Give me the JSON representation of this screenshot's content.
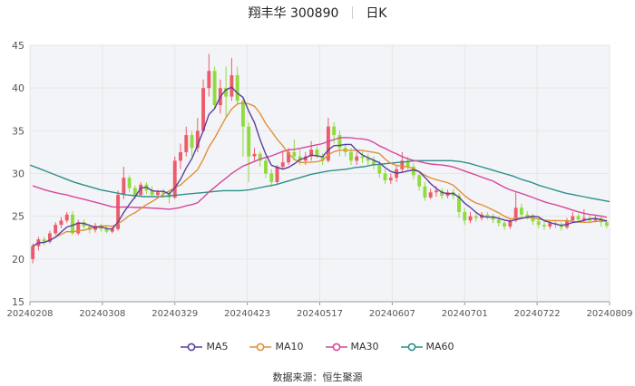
{
  "header": {
    "name": "翔丰华",
    "code": "300890",
    "period": "日K"
  },
  "source_label": "数据来源：",
  "source_name": "恒生聚源",
  "colors": {
    "up": "#ef5a6a",
    "down": "#8fdc3c",
    "ma5": "#5b3f9c",
    "ma10": "#e0903a",
    "ma30": "#d6479a",
    "ma60": "#2f8f8a",
    "grid": "#e6e6e6",
    "plot_bg": "#f3f4f8"
  },
  "chart_data": {
    "type": "candlestick",
    "x_ticks": [
      "20240208",
      "20240308",
      "20240329",
      "20240423",
      "20240517",
      "20240607",
      "20240701",
      "20240722",
      "20240809"
    ],
    "y_ticks": [
      "15",
      "20",
      "25",
      "30",
      "35",
      "40",
      "45"
    ],
    "ylim": [
      15,
      45
    ],
    "grid": true,
    "legend_position": "bottom",
    "legend": [
      "MA5",
      "MA10",
      "MA30",
      "MA60"
    ],
    "candles": [
      [
        20.0,
        21.5,
        19.5,
        21.8
      ],
      [
        21.5,
        22.3,
        21.0,
        22.6
      ],
      [
        22.3,
        22.0,
        21.6,
        22.6
      ],
      [
        22.0,
        23.0,
        21.8,
        23.3
      ],
      [
        23.0,
        24.0,
        22.8,
        24.3
      ],
      [
        24.0,
        24.5,
        23.6,
        24.9
      ],
      [
        24.5,
        25.2,
        24.2,
        25.5
      ],
      [
        25.2,
        23.0,
        22.8,
        25.6
      ],
      [
        23.0,
        24.3,
        22.8,
        24.6
      ],
      [
        24.3,
        23.8,
        23.5,
        24.6
      ],
      [
        23.8,
        23.4,
        23.0,
        24.0
      ],
      [
        23.4,
        23.9,
        23.1,
        24.2
      ],
      [
        23.9,
        23.5,
        23.2,
        24.1
      ],
      [
        23.5,
        23.2,
        23.0,
        23.8
      ],
      [
        23.2,
        23.5,
        23.0,
        23.8
      ],
      [
        23.5,
        27.5,
        23.3,
        28.0
      ],
      [
        27.5,
        29.5,
        27.0,
        30.8
      ],
      [
        29.5,
        28.3,
        27.8,
        29.8
      ],
      [
        28.3,
        27.5,
        27.0,
        28.6
      ],
      [
        27.5,
        28.7,
        27.3,
        29.0
      ],
      [
        28.7,
        28.0,
        27.6,
        29.0
      ],
      [
        28.0,
        27.5,
        27.2,
        28.5
      ],
      [
        27.5,
        27.8,
        27.3,
        28.1
      ],
      [
        27.8,
        27.6,
        27.2,
        28.2
      ],
      [
        27.6,
        27.2,
        26.5,
        28.0
      ],
      [
        27.2,
        31.5,
        27.0,
        32.0
      ],
      [
        31.5,
        32.5,
        30.5,
        33.5
      ],
      [
        32.5,
        34.5,
        32.0,
        35.5
      ],
      [
        34.5,
        33.0,
        32.0,
        35.0
      ],
      [
        33.0,
        35.0,
        32.5,
        36.5
      ],
      [
        35.0,
        40.0,
        34.8,
        41.0
      ],
      [
        40.0,
        42.0,
        39.0,
        44.0
      ],
      [
        42.0,
        38.0,
        37.5,
        42.5
      ],
      [
        38.0,
        40.0,
        37.0,
        41.0
      ],
      [
        40.0,
        39.0,
        36.5,
        42.5
      ],
      [
        39.0,
        41.5,
        38.5,
        43.5
      ],
      [
        41.5,
        38.5,
        38.0,
        42.5
      ],
      [
        38.5,
        35.5,
        32.0,
        39.0
      ],
      [
        35.5,
        32.0,
        29.0,
        36.0
      ],
      [
        32.0,
        32.3,
        31.5,
        33.0
      ],
      [
        32.3,
        31.5,
        30.8,
        32.6
      ],
      [
        31.5,
        30.0,
        29.5,
        31.8
      ],
      [
        30.0,
        29.0,
        28.5,
        30.5
      ],
      [
        29.0,
        30.8,
        28.8,
        31.0
      ],
      [
        30.8,
        31.3,
        30.5,
        32.5
      ],
      [
        31.3,
        32.5,
        31.0,
        33.0
      ],
      [
        32.5,
        32.0,
        31.5,
        34.0
      ],
      [
        32.0,
        31.5,
        31.0,
        32.8
      ],
      [
        31.5,
        32.0,
        31.0,
        32.5
      ],
      [
        32.0,
        32.8,
        31.5,
        33.8
      ],
      [
        32.8,
        32.0,
        31.8,
        33.2
      ],
      [
        32.0,
        31.5,
        31.0,
        32.4
      ],
      [
        31.5,
        35.5,
        31.3,
        36.5
      ],
      [
        35.5,
        34.5,
        33.5,
        36.0
      ],
      [
        34.5,
        33.0,
        32.0,
        35.0
      ],
      [
        33.0,
        32.5,
        32.0,
        33.5
      ],
      [
        32.5,
        31.5,
        31.0,
        33.0
      ],
      [
        31.5,
        32.0,
        31.0,
        32.5
      ],
      [
        32.0,
        31.8,
        31.2,
        32.6
      ],
      [
        31.8,
        31.5,
        31.0,
        32.3
      ],
      [
        31.5,
        31.0,
        30.5,
        32.0
      ],
      [
        31.0,
        30.0,
        29.5,
        31.5
      ],
      [
        30.0,
        29.2,
        28.8,
        30.5
      ],
      [
        29.2,
        29.5,
        28.8,
        30.0
      ],
      [
        29.5,
        30.5,
        29.0,
        31.0
      ],
      [
        30.5,
        31.5,
        30.2,
        32.5
      ],
      [
        31.5,
        30.8,
        30.4,
        32.0
      ],
      [
        30.8,
        29.8,
        29.3,
        31.2
      ],
      [
        29.8,
        28.5,
        28.0,
        30.0
      ],
      [
        28.5,
        27.2,
        26.8,
        29.0
      ],
      [
        27.2,
        27.8,
        27.0,
        28.2
      ],
      [
        27.8,
        28.0,
        27.3,
        28.5
      ],
      [
        28.0,
        27.4,
        27.0,
        28.3
      ],
      [
        27.4,
        27.8,
        27.1,
        28.1
      ],
      [
        27.8,
        27.4,
        27.0,
        28.2
      ],
      [
        27.4,
        25.5,
        24.8,
        27.7
      ],
      [
        25.5,
        24.5,
        24.0,
        26.0
      ],
      [
        24.5,
        25.0,
        24.2,
        25.5
      ],
      [
        25.0,
        24.8,
        24.4,
        25.3
      ],
      [
        24.8,
        25.2,
        24.5,
        25.5
      ],
      [
        25.2,
        25.0,
        24.6,
        25.5
      ],
      [
        25.0,
        24.6,
        24.2,
        25.3
      ],
      [
        24.6,
        24.2,
        23.8,
        25.0
      ],
      [
        24.2,
        23.8,
        23.4,
        24.6
      ],
      [
        23.8,
        24.5,
        23.5,
        24.8
      ],
      [
        24.5,
        26.0,
        24.3,
        27.8
      ],
      [
        26.0,
        25.2,
        24.8,
        26.5
      ],
      [
        25.2,
        25.0,
        24.6,
        25.6
      ],
      [
        25.0,
        24.4,
        24.0,
        25.3
      ],
      [
        24.4,
        24.0,
        23.6,
        24.8
      ],
      [
        24.0,
        23.8,
        23.4,
        24.4
      ],
      [
        23.8,
        24.2,
        23.5,
        24.5
      ],
      [
        24.2,
        24.0,
        23.6,
        24.5
      ],
      [
        24.0,
        23.7,
        23.3,
        24.3
      ],
      [
        23.7,
        24.5,
        23.5,
        24.8
      ],
      [
        24.5,
        25.0,
        24.2,
        25.5
      ],
      [
        25.0,
        24.6,
        24.3,
        25.3
      ],
      [
        24.6,
        24.8,
        24.3,
        25.8
      ],
      [
        24.8,
        24.5,
        24.2,
        25.2
      ],
      [
        24.5,
        24.8,
        24.3,
        25.1
      ],
      [
        24.8,
        24.3,
        23.8,
        25.0
      ],
      [
        24.3,
        23.9,
        23.6,
        24.6
      ]
    ],
    "ma60": [
      31.0,
      30.6,
      30.2,
      29.8,
      29.4,
      29.0,
      28.7,
      28.4,
      28.1,
      27.9,
      27.7,
      27.5,
      27.4,
      27.3,
      27.3,
      27.3,
      27.4,
      27.5,
      27.6,
      27.7,
      27.8,
      27.9,
      28.0,
      28.0,
      28.0,
      28.1,
      28.3,
      28.5,
      28.7,
      29.0,
      29.3,
      29.6,
      29.9,
      30.1,
      30.3,
      30.4,
      30.5,
      30.7,
      30.8,
      31.0,
      31.1,
      31.2,
      31.3,
      31.4,
      31.5,
      31.5,
      31.5,
      31.5,
      31.5,
      31.4,
      31.2,
      30.9,
      30.6,
      30.3,
      30.0,
      29.7,
      29.3,
      29.0,
      28.6,
      28.3,
      28.0,
      27.7,
      27.5,
      27.3,
      27.1,
      26.9,
      26.7
    ]
  }
}
